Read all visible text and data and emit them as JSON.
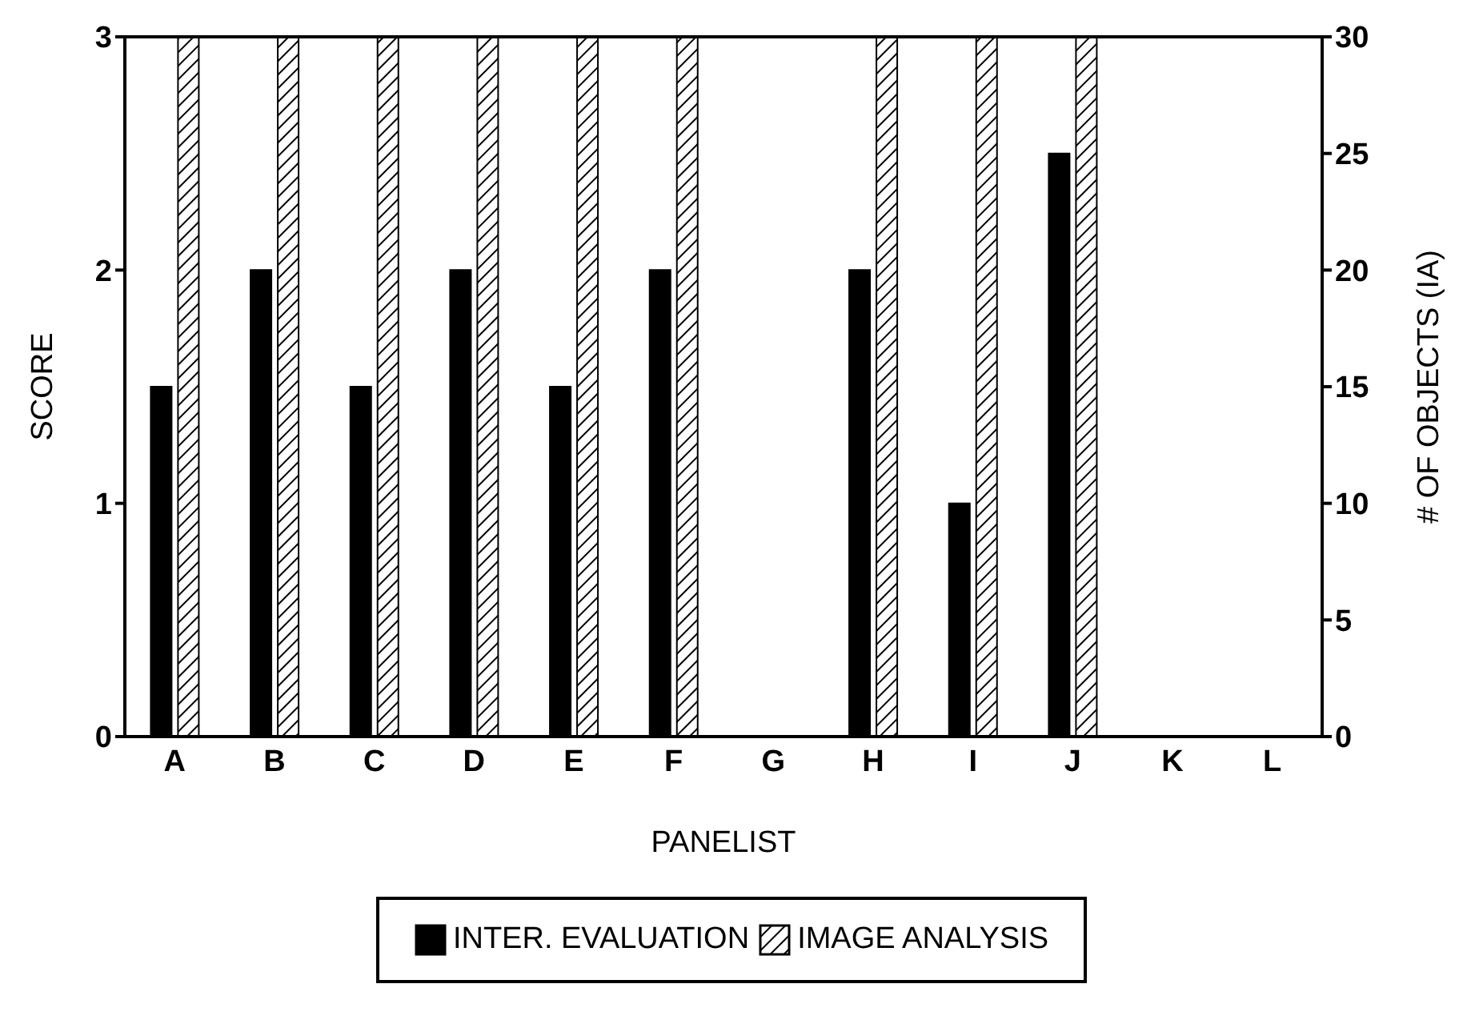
{
  "chart_data": {
    "type": "bar",
    "xlabel": "PANELIST",
    "ylabel": "SCORE",
    "y2label": "# OF OBJECTS (IA)",
    "categories": [
      "A",
      "B",
      "C",
      "D",
      "E",
      "F",
      "G",
      "H",
      "I",
      "J",
      "K",
      "L"
    ],
    "series": [
      {
        "name": "INTER. EVALUATION",
        "color": "#000000",
        "values": [
          1.5,
          2,
          1.5,
          2,
          1.5,
          2,
          0,
          2,
          1,
          2.5,
          0,
          0
        ]
      },
      {
        "name": "IMAGE ANALYSIS",
        "color": "#000000",
        "axis": "y2",
        "values": [
          30,
          30,
          30,
          30,
          30,
          30,
          0,
          30,
          30,
          30,
          0,
          0
        ]
      }
    ],
    "ylim": [
      0,
      3
    ],
    "yticks": [
      0,
      1,
      2,
      3
    ],
    "y2lim": [
      0,
      30
    ],
    "y2ticks": [
      0,
      5,
      10,
      15,
      20,
      25,
      30
    ],
    "grid": false,
    "legend": "bottom"
  }
}
